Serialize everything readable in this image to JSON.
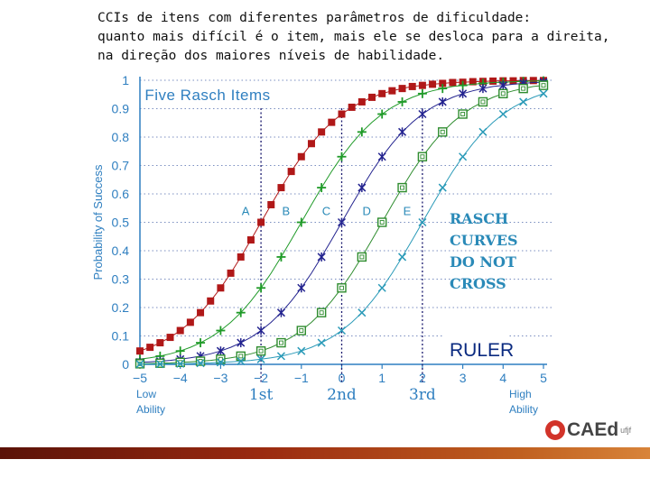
{
  "caption": {
    "lines": [
      "CCIs de itens com diferentes parâmetros de dificuldade:",
      "quanto mais difícil é o item, mais ele se desloca para a direita,",
      "na direção dos maiores níveis de habilidade."
    ]
  },
  "chart_data": {
    "type": "line",
    "title": "Five Rasch Items",
    "ylabel": "Probability of Success",
    "xlim": [
      -5,
      5
    ],
    "ylim": [
      0,
      1
    ],
    "x_ticks": [
      "−5",
      "−4",
      "−3",
      "−2",
      "−1",
      "0",
      "1",
      "2",
      "3",
      "4",
      "5"
    ],
    "y_ticks": [
      "0",
      "0.1",
      "0.2",
      "0.3",
      "0.4",
      "0.5",
      "0.6",
      "0.7",
      "0.8",
      "0.9",
      "1"
    ],
    "grid": true,
    "x": [
      -5,
      -4.75,
      -4.5,
      -4.25,
      -4,
      -3.75,
      -3.5,
      -3.25,
      -3,
      -2.75,
      -2.5,
      -2.25,
      -2,
      -1.75,
      -1.5,
      -1.25,
      -1,
      -0.75,
      -0.5,
      -0.25,
      0,
      0.25,
      0.5,
      0.75,
      1,
      1.25,
      1.5,
      1.75,
      2,
      2.25,
      2.5,
      2.75,
      3,
      3.25,
      3.5,
      3.75,
      4,
      4.25,
      4.5,
      4.75,
      5
    ],
    "series": [
      {
        "name": "A",
        "difficulty": -2,
        "marker": "square-filled",
        "color": "#b01818",
        "values": [
          0.047,
          0.06,
          0.076,
          0.095,
          0.119,
          0.148,
          0.182,
          0.223,
          0.269,
          0.321,
          0.378,
          0.438,
          0.5,
          0.562,
          0.622,
          0.679,
          0.731,
          0.777,
          0.818,
          0.852,
          0.881,
          0.905,
          0.924,
          0.94,
          0.953,
          0.963,
          0.971,
          0.978,
          0.982,
          0.986,
          0.989,
          0.992,
          0.993,
          0.995,
          0.996,
          0.997,
          0.998,
          0.998,
          0.999,
          0.999,
          0.999
        ]
      },
      {
        "name": "B",
        "difficulty": -1,
        "marker": "plus",
        "color": "#1f9a28",
        "values": [
          0.018,
          0.023,
          0.029,
          0.037,
          0.047,
          0.06,
          0.076,
          0.095,
          0.119,
          0.148,
          0.182,
          0.223,
          0.269,
          0.321,
          0.378,
          0.438,
          0.5,
          0.562,
          0.622,
          0.679,
          0.731,
          0.777,
          0.818,
          0.852,
          0.881,
          0.905,
          0.924,
          0.94,
          0.953,
          0.963,
          0.971,
          0.978,
          0.982,
          0.986,
          0.989,
          0.992,
          0.993,
          0.995,
          0.996,
          0.997,
          0.998
        ]
      },
      {
        "name": "C",
        "difficulty": 0,
        "marker": "asterisk",
        "color": "#23238f",
        "values": [
          0.007,
          0.009,
          0.011,
          0.014,
          0.018,
          0.023,
          0.029,
          0.037,
          0.047,
          0.06,
          0.076,
          0.095,
          0.119,
          0.148,
          0.182,
          0.223,
          0.269,
          0.321,
          0.378,
          0.438,
          0.5,
          0.562,
          0.622,
          0.679,
          0.731,
          0.777,
          0.818,
          0.852,
          0.881,
          0.905,
          0.924,
          0.94,
          0.953,
          0.963,
          0.971,
          0.978,
          0.982,
          0.986,
          0.989,
          0.992,
          0.993
        ]
      },
      {
        "name": "D",
        "difficulty": 1,
        "marker": "square-open",
        "color": "#2e8c2e",
        "values": [
          0.002,
          0.003,
          0.004,
          0.005,
          0.007,
          0.009,
          0.011,
          0.014,
          0.018,
          0.023,
          0.029,
          0.037,
          0.047,
          0.06,
          0.076,
          0.095,
          0.119,
          0.148,
          0.182,
          0.223,
          0.269,
          0.321,
          0.378,
          0.438,
          0.5,
          0.562,
          0.622,
          0.679,
          0.731,
          0.777,
          0.818,
          0.852,
          0.881,
          0.905,
          0.924,
          0.94,
          0.953,
          0.963,
          0.971,
          0.978,
          0.982
        ]
      },
      {
        "name": "E",
        "difficulty": 2,
        "marker": "x",
        "color": "#2a9ab8",
        "values": [
          0.001,
          0.001,
          0.001,
          0.002,
          0.002,
          0.003,
          0.004,
          0.005,
          0.007,
          0.009,
          0.011,
          0.014,
          0.018,
          0.023,
          0.029,
          0.037,
          0.047,
          0.06,
          0.076,
          0.095,
          0.119,
          0.148,
          0.182,
          0.223,
          0.269,
          0.321,
          0.378,
          0.438,
          0.5,
          0.562,
          0.622,
          0.679,
          0.731,
          0.777,
          0.818,
          0.852,
          0.881,
          0.905,
          0.924,
          0.94,
          0.953
        ]
      }
    ],
    "reference_lines": [
      {
        "x": -2,
        "label": "1st"
      },
      {
        "x": 0,
        "label": "2nd"
      },
      {
        "x": 2,
        "label": "3rd"
      }
    ],
    "annotations": {
      "rasch_note": [
        "RASCH",
        "CURVES",
        "DO NOT",
        "CROSS"
      ],
      "ruler": "RULER",
      "low_ability": [
        "Low",
        "Ability"
      ],
      "high_ability": [
        "High",
        "Ability"
      ]
    },
    "colors": {
      "title": "#2f7fc0",
      "axis_text": "#2f7fc0",
      "annotation": "#2a8ab8",
      "ruler_label": "#0a2a80",
      "grid": "#7a8ec0"
    }
  },
  "logo": {
    "text": "CAEd",
    "tail": "ufjf"
  }
}
